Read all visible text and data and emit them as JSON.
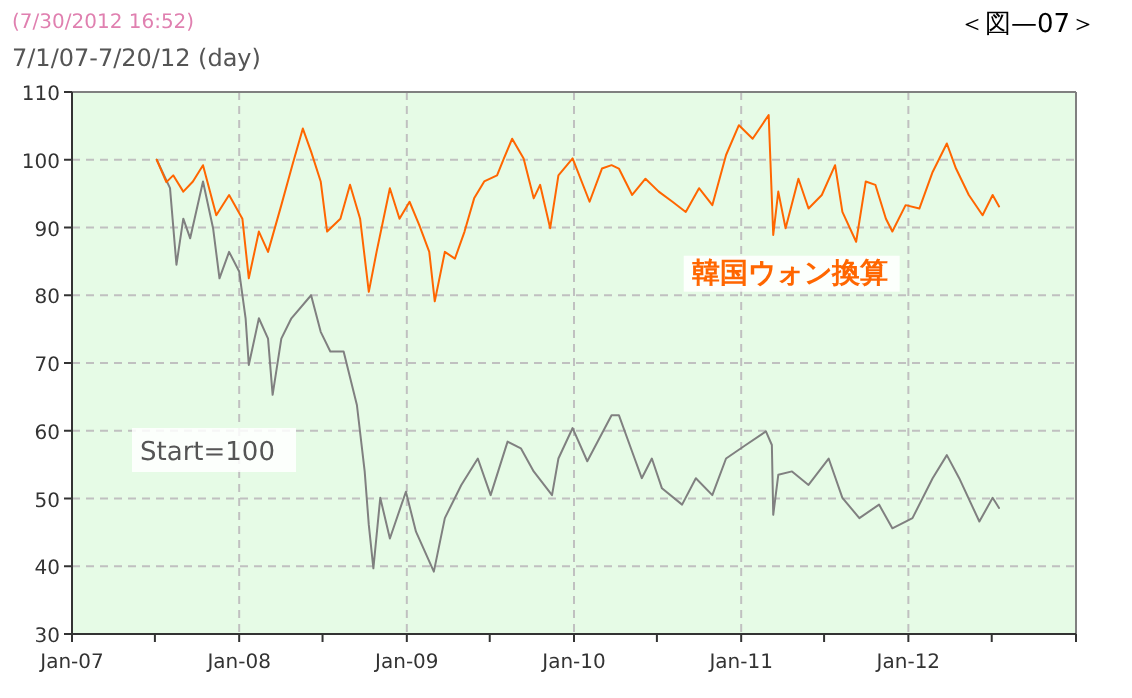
{
  "chart_data": {
    "type": "line",
    "title": "7/1/07-7/20/12 (day)",
    "annotations": [
      "(7/30/2012 16:52)",
      "＜図—07＞",
      "Start=100"
    ],
    "xlim": [
      "2007-01-01",
      "2013-01-01"
    ],
    "xticks": [
      {
        "value": "2007-01-01",
        "label": "Jan-07"
      },
      {
        "value": "2007-07-01",
        "label": null
      },
      {
        "value": "2008-01-01",
        "label": "Jan-08"
      },
      {
        "value": "2008-07-01",
        "label": null
      },
      {
        "value": "2009-01-01",
        "label": "Jan-09"
      },
      {
        "value": "2009-07-01",
        "label": null
      },
      {
        "value": "2010-01-01",
        "label": "Jan-10"
      },
      {
        "value": "2010-07-01",
        "label": null
      },
      {
        "value": "2011-01-01",
        "label": "Jan-11"
      },
      {
        "value": "2011-07-01",
        "label": null
      },
      {
        "value": "2012-01-01",
        "label": "Jan-12"
      },
      {
        "value": "2012-07-01",
        "label": null
      },
      {
        "value": "2013-01-01",
        "label": null
      }
    ],
    "ylim": [
      30,
      110
    ],
    "yticks": [
      30,
      40,
      50,
      60,
      70,
      80,
      90,
      100,
      110
    ],
    "grid": true,
    "line_style": "solid",
    "series": [
      {
        "name": null,
        "color": "#808080",
        "x": [
          "2007-07-05",
          "2007-08-03",
          "2007-08-17",
          "2007-09-01",
          "2007-09-16",
          "2007-10-14",
          "2007-11-05",
          "2007-11-19",
          "2007-12-10",
          "2008-01-01",
          "2008-01-15",
          "2008-01-22",
          "2008-02-13",
          "2008-03-04",
          "2008-03-14",
          "2008-04-02",
          "2008-04-24",
          "2008-06-06",
          "2008-06-27",
          "2008-07-18",
          "2008-08-16",
          "2008-09-14",
          "2008-10-01",
          "2008-10-10",
          "2008-10-20",
          "2008-11-04",
          "2008-11-25",
          "2008-12-30",
          "2009-01-21",
          "2009-03-01",
          "2009-03-25",
          "2009-04-30",
          "2009-06-05",
          "2009-07-03",
          "2009-08-09",
          "2009-09-07",
          "2009-10-05",
          "2009-11-14",
          "2009-11-28",
          "2009-12-29",
          "2010-01-30",
          "2010-03-24",
          "2010-04-09",
          "2010-05-08",
          "2010-05-29",
          "2010-06-20",
          "2010-07-12",
          "2010-08-25",
          "2010-09-24",
          "2010-10-30",
          "2010-11-29",
          "2011-01-11",
          "2011-02-24",
          "2011-03-09",
          "2011-03-12",
          "2011-03-23",
          "2011-04-22",
          "2011-05-28",
          "2011-07-11",
          "2011-08-10",
          "2011-09-16",
          "2011-10-29",
          "2011-11-27",
          "2012-01-10",
          "2012-02-23",
          "2012-03-25",
          "2012-04-21",
          "2012-06-04",
          "2012-07-03",
          "2012-07-17"
        ],
        "values": [
          100,
          95.8,
          84.5,
          91.3,
          88.4,
          96.8,
          89.9,
          82.5,
          86.4,
          83.5,
          76.6,
          69.7,
          76.6,
          73.6,
          65.3,
          73.6,
          76.6,
          80.0,
          74.6,
          71.7,
          71.7,
          63.8,
          54.0,
          46.1,
          39.7,
          50.1,
          44.1,
          51.0,
          45.1,
          39.2,
          47.1,
          52.0,
          55.9,
          50.5,
          58.4,
          57.4,
          54.0,
          50.5,
          55.9,
          60.4,
          55.5,
          62.3,
          62.3,
          56.9,
          53.0,
          55.9,
          51.5,
          49.1,
          53.0,
          50.5,
          55.9,
          57.9,
          59.9,
          57.9,
          47.6,
          53.5,
          54.0,
          52.0,
          55.9,
          50.1,
          47.1,
          49.1,
          45.6,
          47.1,
          53.0,
          56.4,
          53.0,
          46.6,
          50.1,
          48.6
        ]
      },
      {
        "name": "韓国ウォン換算",
        "color": "#ff6600",
        "x": [
          "2007-07-05",
          "2007-07-26",
          "2007-08-10",
          "2007-09-01",
          "2007-09-22",
          "2007-10-14",
          "2007-11-12",
          "2007-12-10",
          "2008-01-08",
          "2008-01-22",
          "2008-02-13",
          "2008-03-04",
          "2008-04-02",
          "2008-04-26",
          "2008-05-19",
          "2008-06-06",
          "2008-06-27",
          "2008-07-11",
          "2008-08-09",
          "2008-08-30",
          "2008-09-21",
          "2008-10-10",
          "2008-10-27",
          "2008-11-25",
          "2008-12-16",
          "2009-01-07",
          "2009-01-28",
          "2009-02-19",
          "2009-03-03",
          "2009-03-25",
          "2009-04-16",
          "2009-05-07",
          "2009-05-28",
          "2009-06-19",
          "2009-07-17",
          "2009-08-01",
          "2009-08-19",
          "2009-09-13",
          "2009-10-05",
          "2009-10-19",
          "2009-11-10",
          "2009-11-28",
          "2009-12-29",
          "2010-02-04",
          "2010-03-03",
          "2010-03-24",
          "2010-04-09",
          "2010-05-08",
          "2010-06-06",
          "2010-07-05",
          "2010-08-04",
          "2010-09-02",
          "2010-10-01",
          "2010-10-30",
          "2010-11-29",
          "2010-12-27",
          "2011-01-26",
          "2011-03-02",
          "2011-03-12",
          "2011-03-23",
          "2011-04-08",
          "2011-05-06",
          "2011-05-28",
          "2011-06-26",
          "2011-07-25",
          "2011-08-10",
          "2011-09-09",
          "2011-09-30",
          "2011-10-21",
          "2011-11-13",
          "2011-11-27",
          "2011-12-26",
          "2012-01-25",
          "2012-02-23",
          "2012-03-25",
          "2012-04-14",
          "2012-05-12",
          "2012-06-11",
          "2012-07-03",
          "2012-07-17"
        ],
        "values": [
          100,
          96.7,
          97.7,
          95.3,
          96.8,
          99.2,
          91.8,
          94.8,
          91.3,
          82.5,
          89.4,
          86.4,
          93.3,
          99.2,
          104.6,
          101.2,
          96.8,
          89.4,
          91.3,
          96.3,
          91.3,
          80.5,
          86.4,
          95.8,
          91.3,
          93.8,
          90.4,
          86.4,
          79.1,
          86.4,
          85.4,
          89.4,
          94.3,
          96.8,
          97.7,
          100.2,
          103.1,
          100.2,
          94.3,
          96.3,
          89.9,
          97.7,
          100.2,
          93.8,
          98.7,
          99.2,
          98.7,
          94.8,
          97.2,
          95.3,
          93.8,
          92.3,
          95.8,
          93.3,
          100.7,
          105.1,
          103.1,
          106.6,
          88.9,
          95.3,
          89.9,
          97.2,
          92.8,
          94.8,
          99.2,
          92.3,
          87.9,
          96.8,
          96.3,
          91.3,
          89.4,
          93.3,
          92.8,
          98.2,
          102.4,
          98.7,
          94.8,
          91.8,
          94.8,
          93.1
        ]
      }
    ]
  }
}
